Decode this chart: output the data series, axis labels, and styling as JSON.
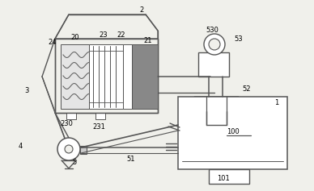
{
  "bg_color": "#f0f0eb",
  "line_color": "#555555",
  "dark_fill": "#888888",
  "light_fill": "#cccccc",
  "white_fill": "#ffffff",
  "wave_color": "#666666"
}
